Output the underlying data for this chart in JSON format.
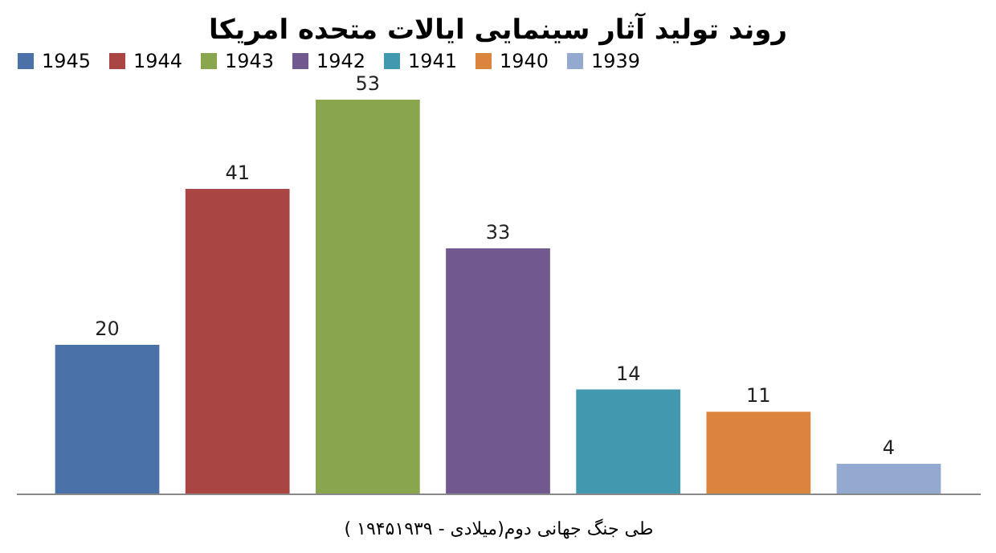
{
  "chart_data": {
    "type": "bar",
    "title": "روند تولید آثار سینمایی ایالات متحده امریکا",
    "xlabel": "( ۱۹۴۵میلادی - ۱۹۳۹)طی جنگ جهانی دوم",
    "categories": [
      null
    ],
    "series": [
      {
        "name": "1945",
        "color": "#4a72a8",
        "values": [
          20
        ]
      },
      {
        "name": "1944",
        "color": "#a94543",
        "values": [
          41
        ]
      },
      {
        "name": "1943",
        "color": "#89a54e",
        "values": [
          53
        ]
      },
      {
        "name": "1942",
        "color": "#71588f",
        "values": [
          33
        ]
      },
      {
        "name": "1941",
        "color": "#4198af",
        "values": [
          14
        ]
      },
      {
        "name": "1940",
        "color": "#db843d",
        "values": [
          11
        ]
      },
      {
        "name": "1939",
        "color": "#93a9cf",
        "values": [
          4
        ]
      }
    ],
    "data_labels": true,
    "legend": "top",
    "grid": false,
    "tick_labels": false
  }
}
